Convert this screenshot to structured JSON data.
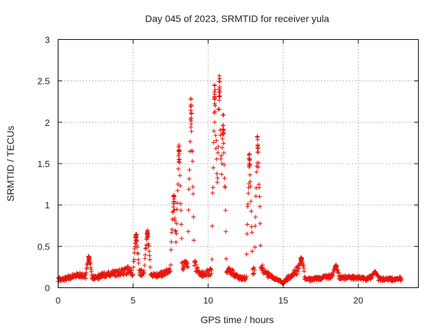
{
  "chart_data": {
    "type": "scatter",
    "title": "Day 045 of 2023, SRMTID for receiver yula",
    "xlabel": "GPS time / hours",
    "ylabel": "SRMTID / TECUs",
    "xlim": [
      0,
      24
    ],
    "ylim": [
      0,
      3
    ],
    "xticks": [
      0,
      5,
      10,
      15,
      20
    ],
    "xtick_labels": [
      "0",
      "5",
      "10",
      "15",
      "20"
    ],
    "yticks": [
      0,
      0.5,
      1,
      1.5,
      2,
      2.5,
      3
    ],
    "ytick_labels": [
      "0",
      "0.5",
      "1",
      "1.5",
      "2",
      "2.5",
      "3"
    ],
    "grid": true,
    "marker": "+",
    "series_color": "#e8140c",
    "baseline": [
      [
        0,
        0.1
      ],
      [
        0.5,
        0.11
      ],
      [
        1,
        0.14
      ],
      [
        1.5,
        0.15
      ],
      [
        2,
        0.13
      ],
      [
        2.5,
        0.12
      ],
      [
        3,
        0.15
      ],
      [
        3.5,
        0.17
      ],
      [
        4,
        0.18
      ],
      [
        4.5,
        0.2
      ],
      [
        4.8,
        0.22
      ],
      [
        5.1,
        0.12
      ],
      [
        5.5,
        0.18
      ],
      [
        6.5,
        0.15
      ],
      [
        7,
        0.16
      ],
      [
        7.5,
        0.22
      ],
      [
        8.2,
        0.25
      ],
      [
        9,
        0.3
      ],
      [
        9.5,
        0.16
      ],
      [
        10,
        0.18
      ],
      [
        10.9,
        0.25
      ],
      [
        11.5,
        0.2
      ],
      [
        12,
        0.12
      ],
      [
        12.5,
        0.11
      ],
      [
        13,
        0.2
      ],
      [
        13.5,
        0.25
      ],
      [
        14,
        0.15
      ],
      [
        14.5,
        0.1
      ],
      [
        15,
        0.06
      ],
      [
        15.5,
        0.15
      ],
      [
        16,
        0.22
      ],
      [
        16.5,
        0.1
      ],
      [
        17,
        0.1
      ],
      [
        17.5,
        0.12
      ],
      [
        18,
        0.13
      ],
      [
        18.5,
        0.14
      ],
      [
        19,
        0.12
      ],
      [
        20,
        0.12
      ],
      [
        20.5,
        0.1
      ],
      [
        21,
        0.14
      ],
      [
        21.5,
        0.1
      ],
      [
        22.9,
        0.11
      ]
    ],
    "peaks": [
      {
        "t": 2.05,
        "peak": 0.38
      },
      {
        "t": 5.2,
        "peak": 0.65
      },
      {
        "t": 5.95,
        "peak": 0.7
      },
      {
        "t": 7.7,
        "peak": 1.12
      },
      {
        "t": 8.05,
        "peak": 1.75
      },
      {
        "t": 8.85,
        "peak": 2.29
      },
      {
        "t": 10.45,
        "peak": 2.47
      },
      {
        "t": 10.75,
        "peak": 2.6
      },
      {
        "t": 11.0,
        "peak": 2.1
      },
      {
        "t": 12.75,
        "peak": 1.62
      },
      {
        "t": 13.3,
        "peak": 1.84
      },
      {
        "t": 16.2,
        "peak": 0.37
      },
      {
        "t": 18.5,
        "peak": 0.28
      },
      {
        "t": 21.1,
        "peak": 0.2
      }
    ]
  }
}
